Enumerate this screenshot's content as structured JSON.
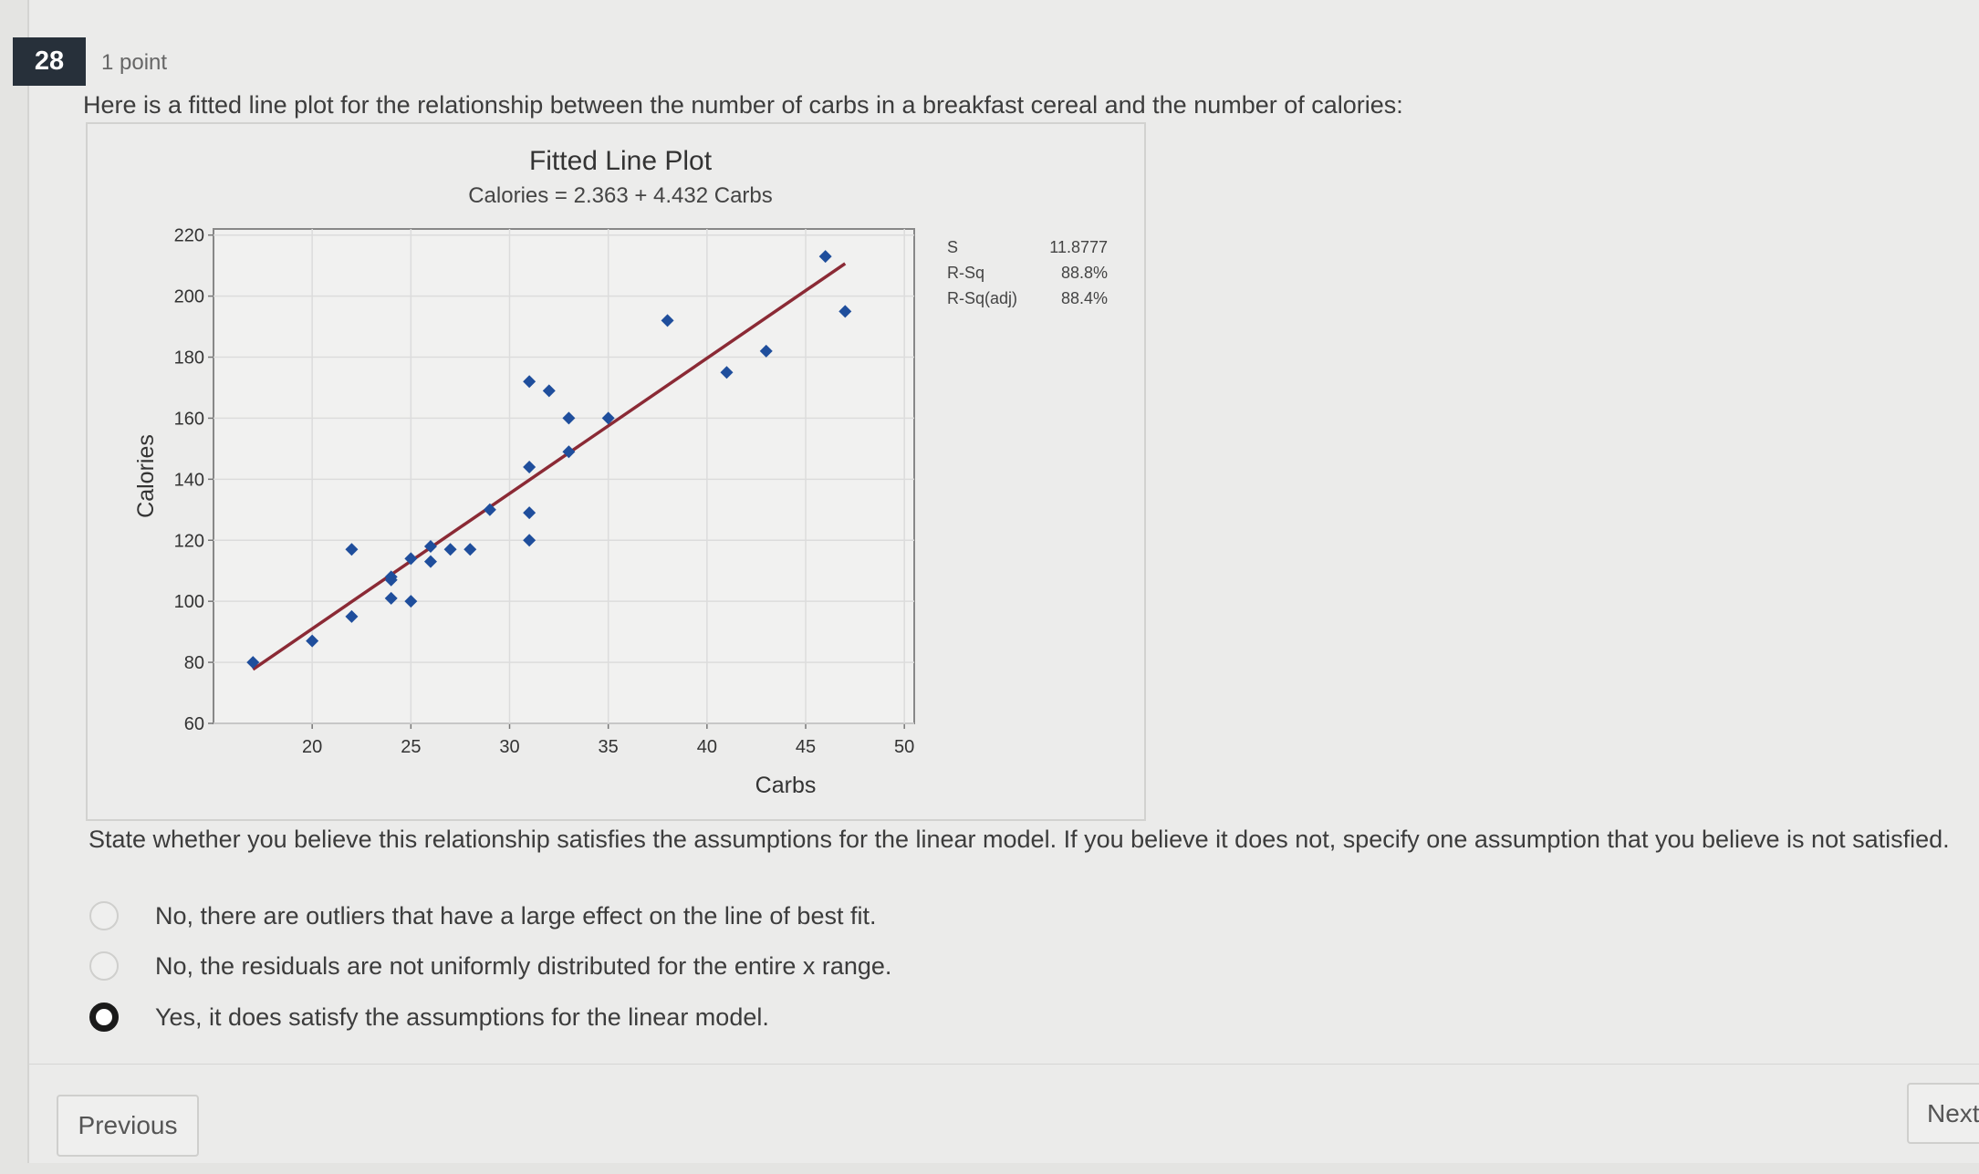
{
  "question": {
    "number": "28",
    "points": "1 point",
    "text": "Here is a fitted line plot for the relationship between the number of carbs in a breakfast cereal and the number of calories:",
    "prompt": "State whether you believe this relationship satisfies the assumptions for the linear model.  If you believe it does not, specify one assumption that you believe is not satisfied.",
    "options": [
      {
        "label": "No, there are outliers that have a large effect on the line of best fit.",
        "selected": false
      },
      {
        "label": "No, the residuals are not uniformly distributed for the entire x range.",
        "selected": false
      },
      {
        "label": "Yes, it does satisfy the assumptions for the linear model.",
        "selected": true
      }
    ]
  },
  "nav": {
    "previous": "Previous",
    "next": "Next"
  },
  "chart_data": {
    "type": "scatter",
    "title": "Fitted Line Plot",
    "subtitle": "Calories = 2.363 + 4.432 Carbs",
    "xlabel": "Carbs",
    "ylabel": "Calories",
    "xlim": [
      15,
      50.5
    ],
    "ylim": [
      60,
      222
    ],
    "xticks": [
      20,
      25,
      30,
      35,
      40,
      45,
      50
    ],
    "yticks": [
      60,
      80,
      100,
      120,
      140,
      160,
      180,
      200,
      220
    ],
    "grid": true,
    "fit": {
      "intercept": 2.363,
      "slope": 4.432,
      "x_range": [
        17,
        47
      ],
      "color": "#8b2a35"
    },
    "point_color": "#1f4e9c",
    "points": [
      [
        17,
        80
      ],
      [
        20,
        87
      ],
      [
        22,
        117
      ],
      [
        22,
        95
      ],
      [
        24,
        108
      ],
      [
        24,
        107
      ],
      [
        24,
        101
      ],
      [
        25,
        114
      ],
      [
        25,
        100
      ],
      [
        26,
        118
      ],
      [
        26,
        113
      ],
      [
        27,
        117
      ],
      [
        28,
        117
      ],
      [
        29,
        130
      ],
      [
        31,
        129
      ],
      [
        31,
        120
      ],
      [
        31,
        144
      ],
      [
        31,
        172
      ],
      [
        32,
        169
      ],
      [
        33,
        160
      ],
      [
        33,
        149
      ],
      [
        35,
        160
      ],
      [
        38,
        192
      ],
      [
        41,
        175
      ],
      [
        43,
        182
      ],
      [
        46,
        213
      ],
      [
        47,
        195
      ]
    ],
    "stats": [
      {
        "label": "S",
        "value": "11.8777"
      },
      {
        "label": "R-Sq",
        "value": "88.8%"
      },
      {
        "label": "R-Sq(adj)",
        "value": "88.4%"
      }
    ]
  }
}
